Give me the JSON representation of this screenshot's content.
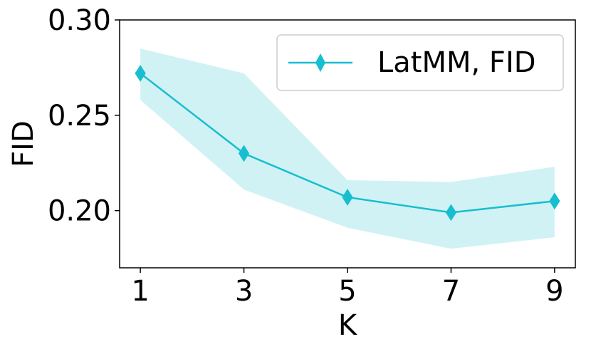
{
  "chart_data": {
    "type": "line",
    "title": "",
    "xlabel": "K",
    "ylabel": "FID",
    "x": [
      1,
      3,
      5,
      7,
      9
    ],
    "xticks": [
      "1",
      "3",
      "5",
      "7",
      "9"
    ],
    "yticks": [
      "0.20",
      "0.25",
      "0.30"
    ],
    "ylim": [
      0.17,
      0.3
    ],
    "series": [
      {
        "name": "LatMM, FID",
        "color": "#17becf",
        "marker": "diamond",
        "values": [
          0.272,
          0.23,
          0.207,
          0.199,
          0.205
        ],
        "upper": [
          0.285,
          0.272,
          0.216,
          0.215,
          0.223
        ],
        "lower": [
          0.258,
          0.211,
          0.191,
          0.18,
          0.186
        ]
      }
    ],
    "legend": "top-right",
    "grid": false
  }
}
